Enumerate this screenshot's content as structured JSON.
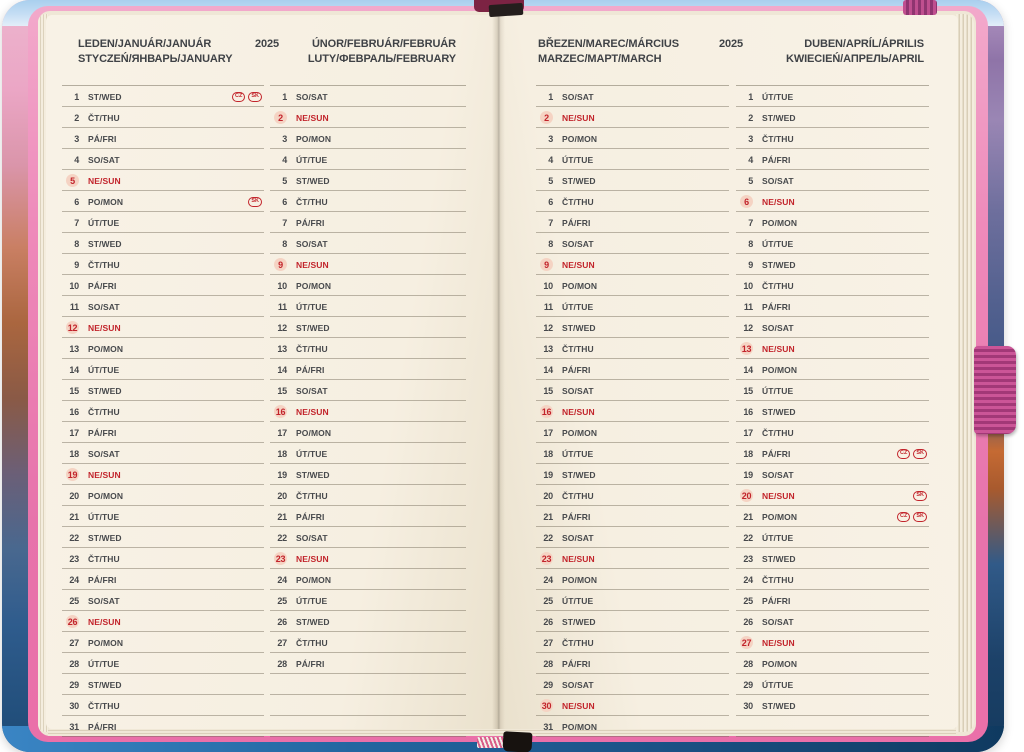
{
  "colors": {
    "accent_red": "#c2242b",
    "paper_cream": "#f6efe1",
    "text_charcoal": "#47494c",
    "cover_pink": "#ee8aba",
    "cover_blue": "#2366a0",
    "elastic_pink": "#a23877"
  },
  "pages": [
    {
      "side": "left",
      "year": "2025",
      "months": [
        {
          "title_line1": "LEDEN/JANUÁR/JANUÁR",
          "title_line2": "STYCZEŃ/ЯНВАРЬ/JANUARY",
          "empty_rows": 0,
          "days": [
            [
              1,
              "ST/WED",
              0,
              [
                "CZ",
                "SK"
              ]
            ],
            [
              2,
              "ČT/THU",
              0
            ],
            [
              3,
              "PÁ/FRI",
              0
            ],
            [
              4,
              "SO/SAT",
              0
            ],
            [
              5,
              "NE/SUN",
              1
            ],
            [
              6,
              "PO/MON",
              0,
              [
                "SK"
              ]
            ],
            [
              7,
              "ÚT/TUE",
              0
            ],
            [
              8,
              "ST/WED",
              0
            ],
            [
              9,
              "ČT/THU",
              0
            ],
            [
              10,
              "PÁ/FRI",
              0
            ],
            [
              11,
              "SO/SAT",
              0
            ],
            [
              12,
              "NE/SUN",
              1
            ],
            [
              13,
              "PO/MON",
              0
            ],
            [
              14,
              "ÚT/TUE",
              0
            ],
            [
              15,
              "ST/WED",
              0
            ],
            [
              16,
              "ČT/THU",
              0
            ],
            [
              17,
              "PÁ/FRI",
              0
            ],
            [
              18,
              "SO/SAT",
              0
            ],
            [
              19,
              "NE/SUN",
              1
            ],
            [
              20,
              "PO/MON",
              0
            ],
            [
              21,
              "ÚT/TUE",
              0
            ],
            [
              22,
              "ST/WED",
              0
            ],
            [
              23,
              "ČT/THU",
              0
            ],
            [
              24,
              "PÁ/FRI",
              0
            ],
            [
              25,
              "SO/SAT",
              0
            ],
            [
              26,
              "NE/SUN",
              1
            ],
            [
              27,
              "PO/MON",
              0
            ],
            [
              28,
              "ÚT/TUE",
              0
            ],
            [
              29,
              "ST/WED",
              0
            ],
            [
              30,
              "ČT/THU",
              0
            ],
            [
              31,
              "PÁ/FRI",
              0
            ]
          ]
        },
        {
          "title_line1": "ÚNOR/FEBRUÁR/FEBRUÁR",
          "title_line2": "LUTY/ФЕВРАЛЬ/FEBRUARY",
          "empty_rows": 3,
          "days": [
            [
              1,
              "SO/SAT",
              0
            ],
            [
              2,
              "NE/SUN",
              1
            ],
            [
              3,
              "PO/MON",
              0
            ],
            [
              4,
              "ÚT/TUE",
              0
            ],
            [
              5,
              "ST/WED",
              0
            ],
            [
              6,
              "ČT/THU",
              0
            ],
            [
              7,
              "PÁ/FRI",
              0
            ],
            [
              8,
              "SO/SAT",
              0
            ],
            [
              9,
              "NE/SUN",
              1
            ],
            [
              10,
              "PO/MON",
              0
            ],
            [
              11,
              "ÚT/TUE",
              0
            ],
            [
              12,
              "ST/WED",
              0
            ],
            [
              13,
              "ČT/THU",
              0
            ],
            [
              14,
              "PÁ/FRI",
              0
            ],
            [
              15,
              "SO/SAT",
              0
            ],
            [
              16,
              "NE/SUN",
              1
            ],
            [
              17,
              "PO/MON",
              0
            ],
            [
              18,
              "ÚT/TUE",
              0
            ],
            [
              19,
              "ST/WED",
              0
            ],
            [
              20,
              "ČT/THU",
              0
            ],
            [
              21,
              "PÁ/FRI",
              0
            ],
            [
              22,
              "SO/SAT",
              0
            ],
            [
              23,
              "NE/SUN",
              1
            ],
            [
              24,
              "PO/MON",
              0
            ],
            [
              25,
              "ÚT/TUE",
              0
            ],
            [
              26,
              "ST/WED",
              0
            ],
            [
              27,
              "ČT/THU",
              0
            ],
            [
              28,
              "PÁ/FRI",
              0
            ]
          ]
        }
      ]
    },
    {
      "side": "right",
      "year": "2025",
      "months": [
        {
          "title_line1": "BŘEZEN/MAREC/MÁRCIUS",
          "title_line2": "MARZEC/МАРТ/MARCH",
          "empty_rows": 0,
          "days": [
            [
              1,
              "SO/SAT",
              0
            ],
            [
              2,
              "NE/SUN",
              1
            ],
            [
              3,
              "PO/MON",
              0
            ],
            [
              4,
              "ÚT/TUE",
              0
            ],
            [
              5,
              "ST/WED",
              0
            ],
            [
              6,
              "ČT/THU",
              0
            ],
            [
              7,
              "PÁ/FRI",
              0
            ],
            [
              8,
              "SO/SAT",
              0
            ],
            [
              9,
              "NE/SUN",
              1
            ],
            [
              10,
              "PO/MON",
              0
            ],
            [
              11,
              "ÚT/TUE",
              0
            ],
            [
              12,
              "ST/WED",
              0
            ],
            [
              13,
              "ČT/THU",
              0
            ],
            [
              14,
              "PÁ/FRI",
              0
            ],
            [
              15,
              "SO/SAT",
              0
            ],
            [
              16,
              "NE/SUN",
              1
            ],
            [
              17,
              "PO/MON",
              0
            ],
            [
              18,
              "ÚT/TUE",
              0
            ],
            [
              19,
              "ST/WED",
              0
            ],
            [
              20,
              "ČT/THU",
              0
            ],
            [
              21,
              "PÁ/FRI",
              0
            ],
            [
              22,
              "SO/SAT",
              0
            ],
            [
              23,
              "NE/SUN",
              1
            ],
            [
              24,
              "PO/MON",
              0
            ],
            [
              25,
              "ÚT/TUE",
              0
            ],
            [
              26,
              "ST/WED",
              0
            ],
            [
              27,
              "ČT/THU",
              0
            ],
            [
              28,
              "PÁ/FRI",
              0
            ],
            [
              29,
              "SO/SAT",
              0
            ],
            [
              30,
              "NE/SUN",
              1
            ],
            [
              31,
              "PO/MON",
              0
            ]
          ]
        },
        {
          "title_line1": "DUBEN/APRÍL/ÁPRILIS",
          "title_line2": "KWIECIEŃ/АПРЕЛЬ/APRIL",
          "empty_rows": 1,
          "days": [
            [
              1,
              "ÚT/TUE",
              0
            ],
            [
              2,
              "ST/WED",
              0
            ],
            [
              3,
              "ČT/THU",
              0
            ],
            [
              4,
              "PÁ/FRI",
              0
            ],
            [
              5,
              "SO/SAT",
              0
            ],
            [
              6,
              "NE/SUN",
              1
            ],
            [
              7,
              "PO/MON",
              0
            ],
            [
              8,
              "ÚT/TUE",
              0
            ],
            [
              9,
              "ST/WED",
              0
            ],
            [
              10,
              "ČT/THU",
              0
            ],
            [
              11,
              "PÁ/FRI",
              0
            ],
            [
              12,
              "SO/SAT",
              0
            ],
            [
              13,
              "NE/SUN",
              1
            ],
            [
              14,
              "PO/MON",
              0
            ],
            [
              15,
              "ÚT/TUE",
              0
            ],
            [
              16,
              "ST/WED",
              0
            ],
            [
              17,
              "ČT/THU",
              0
            ],
            [
              18,
              "PÁ/FRI",
              0,
              [
                "CZ",
                "SK"
              ]
            ],
            [
              19,
              "SO/SAT",
              0
            ],
            [
              20,
              "NE/SUN",
              1,
              [
                "SK"
              ]
            ],
            [
              21,
              "PO/MON",
              0,
              [
                "CZ",
                "SK"
              ]
            ],
            [
              22,
              "ÚT/TUE",
              0
            ],
            [
              23,
              "ST/WED",
              0
            ],
            [
              24,
              "ČT/THU",
              0
            ],
            [
              25,
              "PÁ/FRI",
              0
            ],
            [
              26,
              "SO/SAT",
              0
            ],
            [
              27,
              "NE/SUN",
              1
            ],
            [
              28,
              "PO/MON",
              0
            ],
            [
              29,
              "ÚT/TUE",
              0
            ],
            [
              30,
              "ST/WED",
              0
            ]
          ]
        }
      ]
    }
  ]
}
